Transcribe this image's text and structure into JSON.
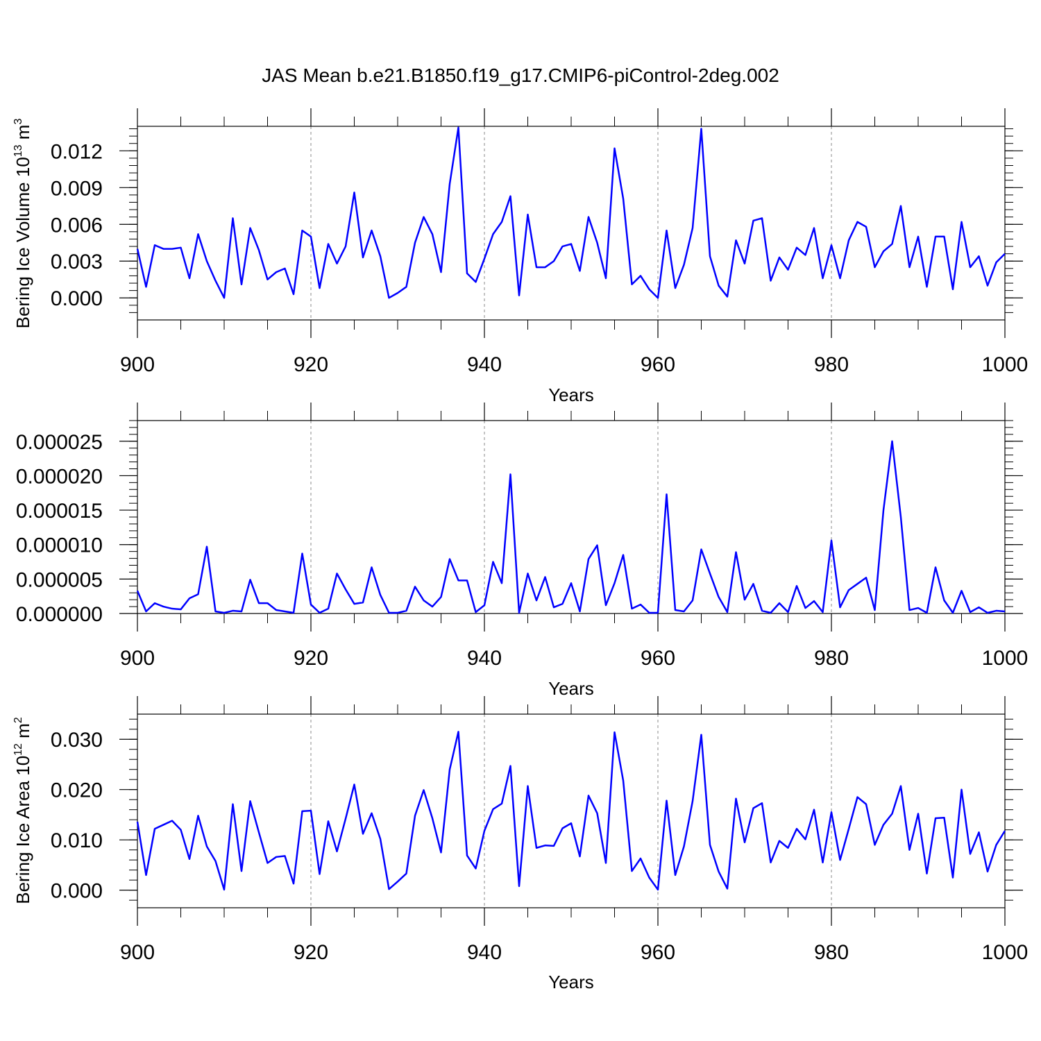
{
  "title": "JAS Mean b.e21.B1850.f19_g17.CMIP6-piControl-2deg.002",
  "line_color": "#0000ff",
  "chart_data": [
    {
      "type": "line",
      "ylabel": "Bering Ice Volume 10",
      "ylabel_exp": "13",
      "ylabel_unit": " m",
      "ylabel_unit_exp": "3",
      "xlabel": "Years",
      "xlim": [
        900,
        1000
      ],
      "ylim": [
        -0.0018,
        0.014
      ],
      "xticks": [
        "900",
        "920",
        "940",
        "960",
        "980",
        "1000"
      ],
      "yticks": [
        "0.000",
        "0.003",
        "0.006",
        "0.009",
        "0.012"
      ],
      "grid": "dashed vertical at x ticks",
      "x_start": 900,
      "series": [
        {
          "values": [
            0.004,
            0.0009,
            0.0043,
            0.004,
            0.004,
            0.0041,
            0.0016,
            0.0052,
            0.003,
            0.0014,
            0.0,
            0.0065,
            0.0011,
            0.0057,
            0.0039,
            0.0015,
            0.0021,
            0.0024,
            0.0003,
            0.0055,
            0.005,
            0.0008,
            0.0044,
            0.0028,
            0.0042,
            0.0086,
            0.0033,
            0.0055,
            0.0034,
            0.0,
            0.0004,
            0.0009,
            0.0045,
            0.0066,
            0.0052,
            0.0021,
            0.0093,
            0.0139,
            0.002,
            0.0013,
            0.0032,
            0.0052,
            0.0062,
            0.0083,
            0.0002,
            0.0068,
            0.0025,
            0.0025,
            0.003,
            0.0042,
            0.0044,
            0.0022,
            0.0066,
            0.0045,
            0.0016,
            0.0122,
            0.0081,
            0.0011,
            0.0018,
            0.0007,
            0.0,
            0.0055,
            0.0008,
            0.0027,
            0.0057,
            0.0138,
            0.0034,
            0.001,
            0.0001,
            0.0047,
            0.0028,
            0.0063,
            0.0065,
            0.0014,
            0.0033,
            0.0023,
            0.0041,
            0.0035,
            0.0057,
            0.0016,
            0.0043,
            0.0016,
            0.0047,
            0.0062,
            0.0058,
            0.0025,
            0.0038,
            0.0044,
            0.0075,
            0.0025,
            0.005,
            0.0009,
            0.005,
            0.005,
            0.0007,
            0.0062,
            0.0025,
            0.0034,
            0.001,
            0.0029,
            0.0036
          ]
        }
      ]
    },
    {
      "type": "line",
      "ylabel": "",
      "xlabel": "Years",
      "xlim": [
        900,
        1000
      ],
      "ylim": [
        0.0,
        2.8e-05
      ],
      "xticks": [
        "900",
        "920",
        "940",
        "960",
        "980",
        "1000"
      ],
      "yticks": [
        "0.000000",
        "0.000005",
        "0.000010",
        "0.000015",
        "0.000020",
        "0.000025"
      ],
      "grid": "dashed vertical at x ticks",
      "x_start": 900,
      "series": [
        {
          "values": [
            3.3e-06,
            3e-07,
            1.5e-06,
            1e-06,
            7e-07,
            6e-07,
            2.2e-06,
            2.8e-06,
            9.7e-06,
            3e-07,
            1e-07,
            4e-07,
            3e-07,
            4.9e-06,
            1.5e-06,
            1.5e-06,
            5e-07,
            3e-07,
            1e-07,
            8.7e-06,
            1.3e-06,
            1e-07,
            7e-07,
            5.8e-06,
            3.5e-06,
            1.4e-06,
            1.6e-06,
            6.7e-06,
            2.7e-06,
            1e-07,
            1e-07,
            4e-07,
            3.9e-06,
            1.9e-06,
            1e-06,
            2.4e-06,
            7.9e-06,
            4.8e-06,
            4.8e-06,
            2e-07,
            1.2e-06,
            7.5e-06,
            4.4e-06,
            2.02e-05,
            1e-07,
            5.8e-06,
            1.9e-06,
            5.3e-06,
            9e-07,
            1.4e-06,
            4.4e-06,
            3e-07,
            7.9e-06,
            9.9e-06,
            1.2e-06,
            4.4e-06,
            8.5e-06,
            7e-07,
            1.3e-06,
            1e-07,
            1e-07,
            1.73e-05,
            5e-07,
            3e-07,
            1.9e-06,
            9.3e-06,
            5.8e-06,
            2.4e-06,
            2e-07,
            8.9e-06,
            2e-06,
            4.3e-06,
            4e-07,
            1e-07,
            1.5e-06,
            2e-07,
            4e-06,
            8e-07,
            1.8e-06,
            2e-07,
            1.06e-05,
            9e-07,
            3.4e-06,
            4.3e-06,
            5.2e-06,
            5e-07,
            1.5e-05,
            2.5e-05,
            1.4e-05,
            5e-07,
            8e-07,
            1e-07,
            6.7e-06,
            1.9e-06,
            1e-07,
            3.3e-06,
            2e-07,
            9e-07,
            1e-07,
            4e-07,
            3e-07
          ]
        }
      ]
    },
    {
      "type": "line",
      "ylabel": "Bering Ice Area 10",
      "ylabel_exp": "12",
      "ylabel_unit": " m",
      "ylabel_unit_exp": "2",
      "xlabel": "Years",
      "xlim": [
        900,
        1000
      ],
      "ylim": [
        -0.0035,
        0.035
      ],
      "xticks": [
        "900",
        "920",
        "940",
        "960",
        "980",
        "1000"
      ],
      "yticks": [
        "0.000",
        "0.010",
        "0.020",
        "0.030"
      ],
      "grid": "dashed vertical at x ticks",
      "x_start": 900,
      "series": [
        {
          "values": [
            0.0136,
            0.003,
            0.0122,
            0.013,
            0.0138,
            0.012,
            0.0062,
            0.0148,
            0.0087,
            0.0058,
            0.0001,
            0.0171,
            0.0038,
            0.0177,
            0.0115,
            0.0054,
            0.0066,
            0.0068,
            0.0013,
            0.0157,
            0.0158,
            0.0032,
            0.0137,
            0.0077,
            0.0142,
            0.021,
            0.0112,
            0.0153,
            0.0102,
            0.0002,
            0.0017,
            0.0033,
            0.0148,
            0.0199,
            0.0143,
            0.0075,
            0.024,
            0.0315,
            0.0069,
            0.0043,
            0.0118,
            0.0161,
            0.0172,
            0.0247,
            0.0008,
            0.0207,
            0.0084,
            0.0089,
            0.0088,
            0.0123,
            0.0133,
            0.0067,
            0.0188,
            0.0153,
            0.0054,
            0.0314,
            0.0218,
            0.0038,
            0.0063,
            0.0025,
            0.0001,
            0.0178,
            0.003,
            0.0087,
            0.0177,
            0.0309,
            0.009,
            0.0037,
            0.0003,
            0.0182,
            0.0095,
            0.0163,
            0.0173,
            0.0055,
            0.0098,
            0.0084,
            0.0122,
            0.0101,
            0.016,
            0.0055,
            0.0155,
            0.006,
            0.0122,
            0.0185,
            0.0171,
            0.009,
            0.013,
            0.0152,
            0.0207,
            0.008,
            0.0152,
            0.0033,
            0.0143,
            0.0144,
            0.0025,
            0.02,
            0.0072,
            0.0115,
            0.0037,
            0.009,
            0.0118
          ]
        }
      ]
    }
  ]
}
